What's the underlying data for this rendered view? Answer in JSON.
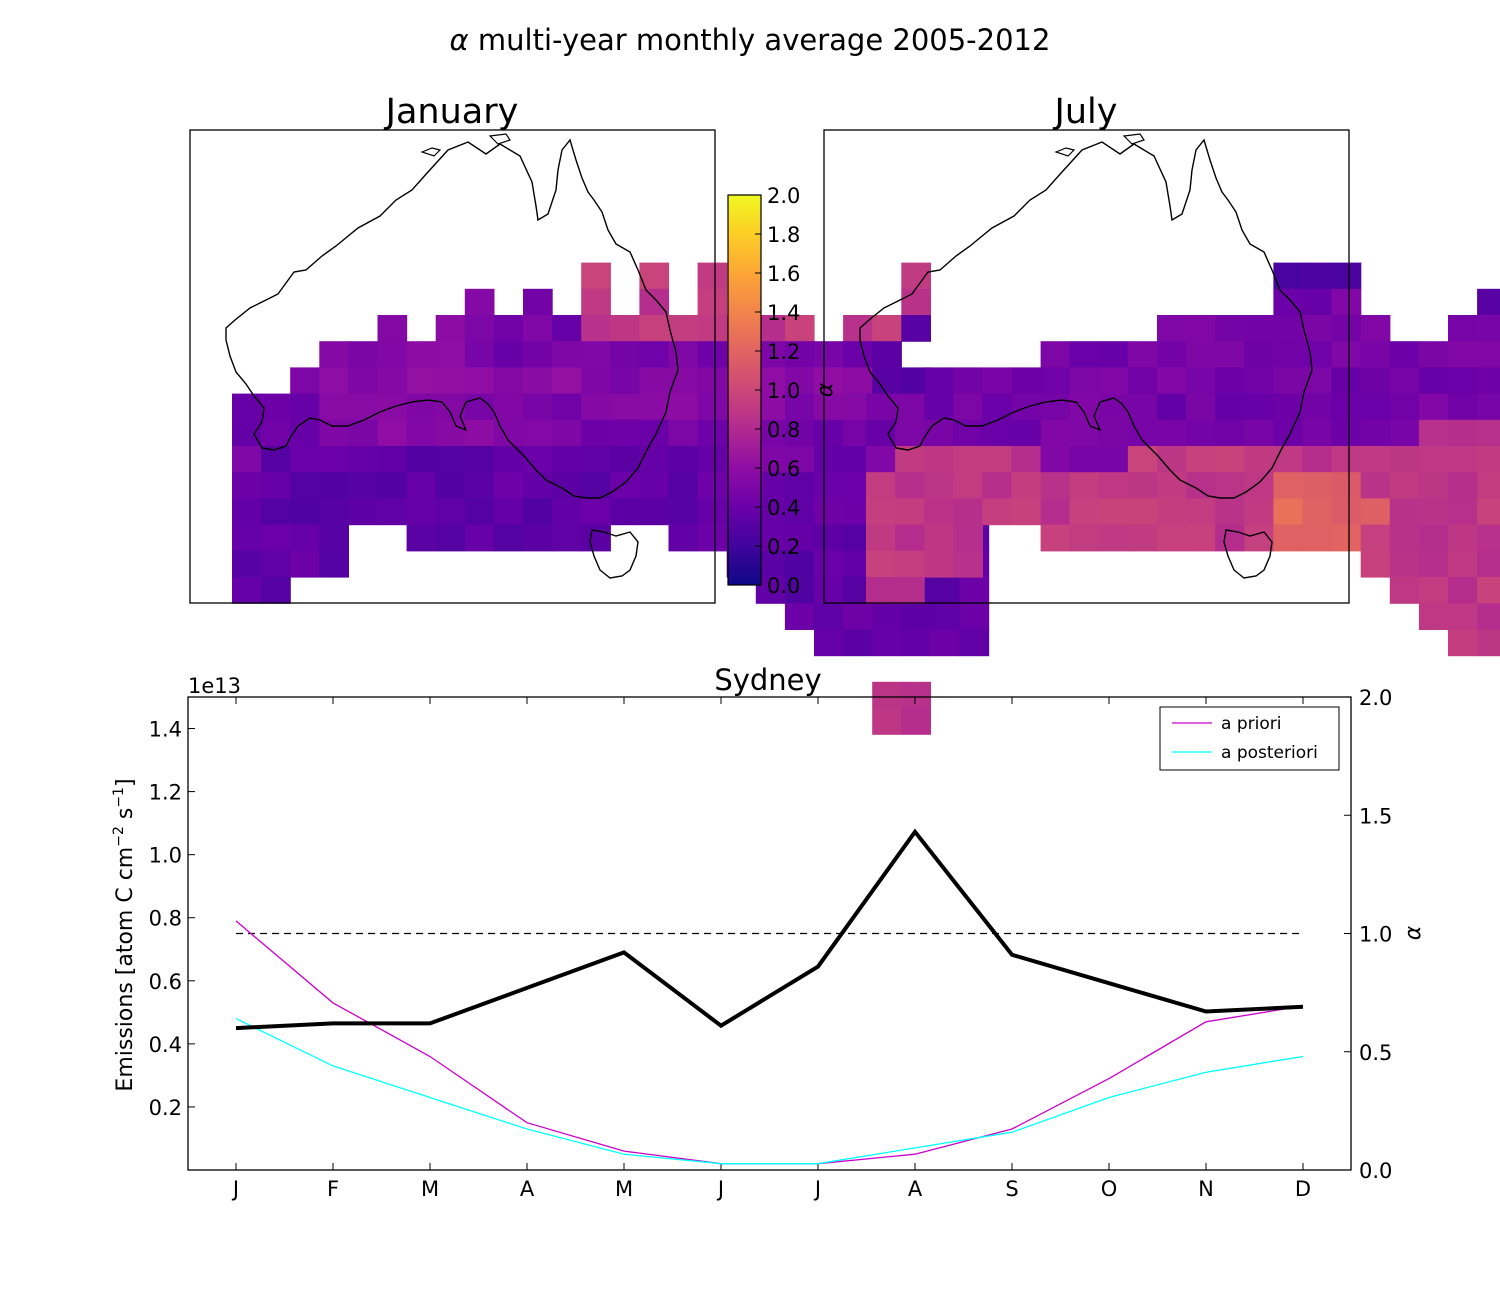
{
  "figure": {
    "title_symbol": "α",
    "title_text": "multi-year monthly average 2005-2012"
  },
  "chart_data": [
    {
      "type": "heatmap",
      "title": "January",
      "grid": [
        "..........................",
        "..........................",
        "..........................",
        "............H.H.H......H..",
        "........d.c.H.H.H......H..",
        ".....d.dccccHHHHHHHH.HHa..",
        "...dddddcccccccccccccca...",
        "..ddddddddddddddddddddaa..",
        "cccdddddddccddddddddddaaaa",
        "cccddddddddcccccccccccaaaa",
        "cbbbbbbbbbbbbbcbbccccbbbbb",
        "bbbbbbbbbbbbbbbbbbbbbbbbbb",
        "bbbbbbbbbbbbbbbbbbbbbbbbbb",
        "bbbb..bbbbbbb..bbbbbbbbbbb",
        "bbbb.............bbbbbbbbb",
        "bb................bbbbbbbb",
        "...................bbbbbbb",
        "....................bbbbbb",
        "..........................",
        "......................HH..",
        "......................HH..",
        ".........................."
      ],
      "legend_codes": {
        "a": 0.25,
        "b": 0.35,
        "c": 0.45,
        "d": 0.55,
        "H": 0.9
      },
      "colorbar": {
        "label": "α",
        "range": [
          0.0,
          2.0
        ],
        "ticks": [
          "0.0",
          "0.2",
          "0.4",
          "0.6",
          "0.8",
          "1.0",
          "1.2",
          "1.4",
          "1.6",
          "1.8",
          "2.0"
        ]
      }
    },
    {
      "type": "heatmap",
      "title": "July",
      "grid": [
        "..........................",
        "..........................",
        "..........................",
        "..............aaa.........",
        "..............ccc....a....",
        "..........cccccccc..ccc...",
        "......ccccccccccccccccca..",
        "..ccccccccccccccccccccccc..",
        "ccccccccccccccccccccccccc.",
        "cccccccccccccccccccHHHHHHH",
        "cHHHHHcccHHHHHHHHHHHHHHHHH",
        "HHHHHHHHHHHHHHSSSHHHHHHHHH",
        "HHHHHHHHHHHHHHSSSSHHHHHHHH",
        "HHHH..HHHHHHHHSSSHHHHHHHHH",
        "HHHH.............HHHHHHHHH",
        "HH................HHHHHHHH",
        "...................HHHHHHH",
        "....................HHHHHH",
        "..........................",
        "..........................",
        "..........................",
        ".........................."
      ],
      "legend_codes": {
        "a": 0.25,
        "c": 0.45,
        "H": 0.9,
        "S": 1.2
      }
    },
    {
      "type": "line",
      "title": "Sydney",
      "categories": [
        "J",
        "F",
        "M",
        "A",
        "M",
        "J",
        "J",
        "A",
        "S",
        "O",
        "N",
        "D"
      ],
      "ylabel_left": "Emissions [atom C cm",
      "ylabel_left_sup1": "−2",
      "ylabel_left_mid": " s",
      "ylabel_left_sup2": "−1",
      "ylabel_left_end": "]",
      "offset_text": "1e13",
      "ylabel_right": "α",
      "ylim_left": [
        0,
        1.5
      ],
      "ylim_right": [
        0,
        2.0
      ],
      "left_ticks": [
        "0.2",
        "0.4",
        "0.6",
        "0.8",
        "1.0",
        "1.2",
        "1.4"
      ],
      "right_ticks": [
        "0.0",
        "0.5",
        "1.0",
        "1.5",
        "2.0"
      ],
      "series": [
        {
          "name": "a priori",
          "color": "#cc00cc",
          "axis": "left",
          "values": [
            0.79,
            0.53,
            0.36,
            0.15,
            0.06,
            0.02,
            0.02,
            0.05,
            0.13,
            0.29,
            0.47,
            0.52
          ]
        },
        {
          "name": "a posteriori",
          "color": "#00ffff",
          "axis": "left",
          "values": [
            0.48,
            0.33,
            0.23,
            0.13,
            0.05,
            0.02,
            0.02,
            0.07,
            0.12,
            0.23,
            0.31,
            0.36
          ]
        },
        {
          "color": "#000000",
          "axis": "right",
          "values": [
            0.6,
            0.62,
            0.62,
            0.77,
            0.92,
            0.61,
            0.86,
            1.43,
            0.91,
            0.79,
            0.67,
            0.69
          ]
        }
      ],
      "reference_line": {
        "value": 1.0,
        "axis": "right"
      },
      "legend_position": "top-right"
    }
  ]
}
